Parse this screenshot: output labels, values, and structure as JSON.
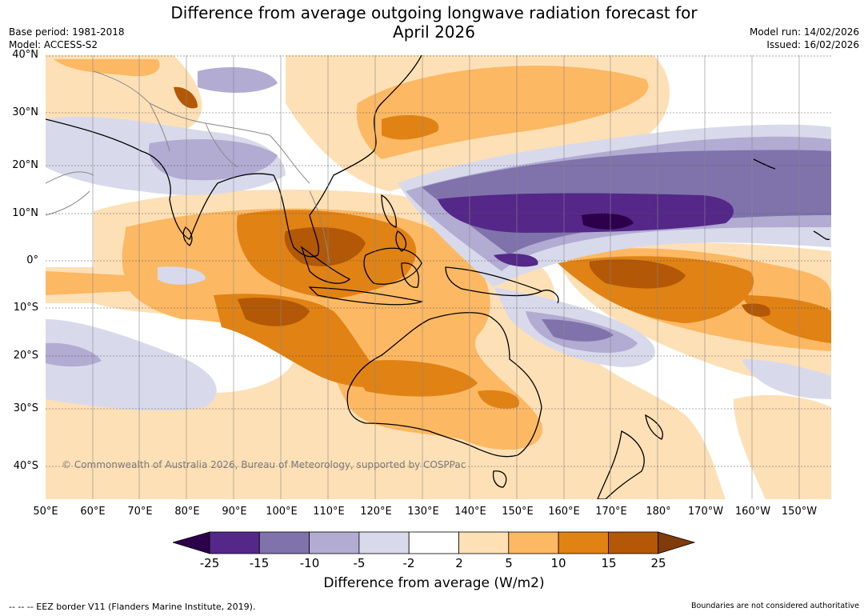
{
  "title_line1": "Difference from average outgoing longwave radiation forecast for",
  "title_line2": "April 2026",
  "base_period": "Base period: 1981-2018",
  "model": "Model: ACCESS-S2",
  "model_run": "Model run: 14/02/2026",
  "issued": "Issued: 16/02/2026",
  "lat_labels": [
    "40°N",
    "30°N",
    "20°N",
    "10°N",
    "0°",
    "10°S",
    "20°S",
    "30°S",
    "40°S"
  ],
  "lon_labels": [
    "50°E",
    "60°E",
    "70°E",
    "80°E",
    "90°E",
    "100°E",
    "110°E",
    "120°E",
    "130°E",
    "140°E",
    "150°E",
    "160°E",
    "170°E",
    "180°",
    "170°W",
    "160°W",
    "150°W"
  ],
  "copyright": "© Commonwealth of Australia 2026, Bureau of Meteorology, supported by COSPPac",
  "legend": {
    "ticks": [
      "-25",
      "-15",
      "-10",
      "-5",
      "-2",
      "2",
      "5",
      "10",
      "15",
      "25"
    ],
    "title": "Difference from average (W/m2)",
    "colors": [
      "#2d004b",
      "#542788",
      "#8073ac",
      "#b2abd2",
      "#d8daeb",
      "#ffffff",
      "#fee0b6",
      "#fdb863",
      "#e08214",
      "#b35806",
      "#7f3b08"
    ]
  },
  "footer_left": "--  --  -- EEZ border V11 (Flanders Marine Institute, 2019).",
  "footer_right": "Boundaries are not considered authoritative"
}
